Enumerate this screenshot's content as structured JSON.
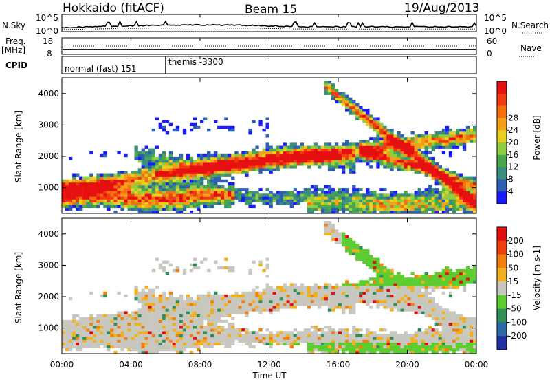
{
  "header": {
    "station": "Hokkaido (fitACF)",
    "beam": "Beam 15",
    "date": "19/Aug/2013"
  },
  "status_panels": {
    "nsky": {
      "label": "N.Sky",
      "ticks": [
        "10^5",
        "10^0"
      ],
      "right_label": "N.Search",
      "right_ticks": [
        "10^5",
        "10^0"
      ]
    },
    "freq": {
      "label_line1": "Freq.",
      "label_line2": "[MHz]",
      "ticks": [
        "18",
        "8"
      ],
      "right_label": "Nave",
      "right_ticks": [
        "60",
        "0"
      ]
    },
    "cpid": {
      "label": "CPID",
      "segments": [
        "normal (fast) 151",
        "themis -3300"
      ]
    }
  },
  "chart_data": [
    {
      "type": "heatmap",
      "name": "power",
      "ylabel": "Slant Range [km]",
      "yticks": [
        1000,
        2000,
        3000,
        4000
      ],
      "ylim": [
        180,
        4500
      ],
      "colorbar": {
        "label": "Power [dB]",
        "ticks": [
          "4",
          "8",
          "12",
          "16",
          "20",
          "24",
          "28"
        ],
        "colors": [
          "#1a1aff",
          "#2e5fb0",
          "#3a8f7c",
          "#4aa84a",
          "#8fcf3f",
          "#e8d020",
          "#f2a018",
          "#f47010",
          "#f03a10",
          "#e61010"
        ]
      }
    },
    {
      "type": "heatmap",
      "name": "velocity",
      "ylabel": "Slant Range [km]",
      "yticks": [
        1000,
        2000,
        3000,
        4000
      ],
      "ylim": [
        180,
        4500
      ],
      "colorbar": {
        "label": "Velocity [m s-1]",
        "ticks": [
          "200",
          "100",
          "50",
          "15",
          "-15",
          "-50",
          "-100",
          "-200"
        ],
        "colors": [
          "#2030a0",
          "#2f6aa8",
          "#2e8f58",
          "#5ccc30",
          "#c8c8c0",
          "#f0b020",
          "#f08010",
          "#f04010",
          "#e01010"
        ]
      }
    }
  ],
  "time_axis": {
    "label": "Time UT",
    "ticks": [
      "00:00",
      "04:00",
      "08:00",
      "12:00",
      "16:00",
      "20:00",
      "00:00"
    ]
  }
}
